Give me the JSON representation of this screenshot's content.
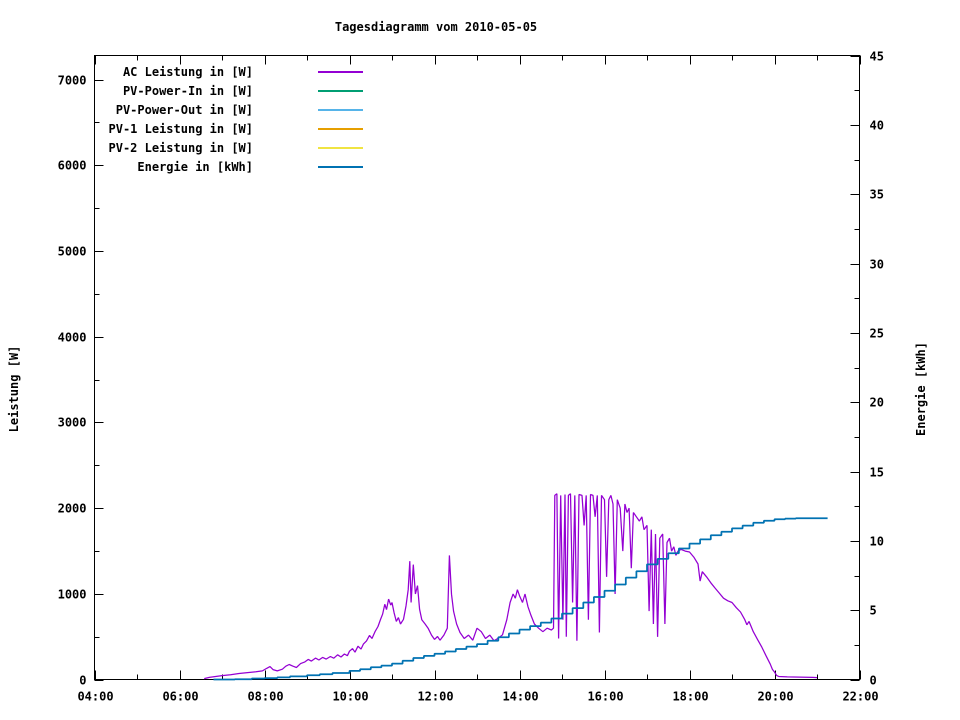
{
  "title": "Tagesdiagramm vom 2010-05-05",
  "axes": {
    "left_label": "Leistung [W]",
    "right_label": "Energie [kWh]"
  },
  "legend": {
    "items": [
      {
        "label": "AC Leistung in [W]",
        "color": "#9400D3"
      },
      {
        "label": "PV-Power-In in [W]",
        "color": "#009E73"
      },
      {
        "label": "PV-Power-Out in [W]",
        "color": "#56B4E9"
      },
      {
        "label": "PV-1 Leistung in [W]",
        "color": "#E69F00"
      },
      {
        "label": "PV-2 Leistung in [W]",
        "color": "#F0E442"
      },
      {
        "label": "Energie in [kWh]",
        "color": "#0072B2"
      }
    ]
  },
  "chart_data": {
    "type": "line",
    "title": "Tagesdiagramm vom 2010-05-05",
    "xlabel": "",
    "ylabel_left": "Leistung [W]",
    "ylabel_right": "Energie [kWh]",
    "grid": false,
    "legend_position": "top-left-inside",
    "x_range": [
      4,
      22
    ],
    "y1_range": [
      0,
      7280
    ],
    "y2_range": [
      0,
      45
    ],
    "x_ticks_major": [
      4,
      6,
      8,
      10,
      12,
      14,
      16,
      18,
      20,
      22
    ],
    "x_tick_labels": [
      "04:00",
      "06:00",
      "08:00",
      "10:00",
      "12:00",
      "14:00",
      "16:00",
      "18:00",
      "20:00",
      "22:00"
    ],
    "x_ticks_minor": [
      5,
      7,
      9,
      11,
      13,
      15,
      17,
      19,
      21
    ],
    "y1_ticks_major": [
      0,
      1000,
      2000,
      3000,
      4000,
      5000,
      6000,
      7000
    ],
    "y1_tick_labels": [
      "0",
      "1000",
      "2000",
      "3000",
      "4000",
      "5000",
      "6000",
      "7000"
    ],
    "y1_ticks_minor": [
      500,
      1500,
      2500,
      3500,
      4500,
      5500,
      6500
    ],
    "y2_ticks_major": [
      0,
      5,
      10,
      15,
      20,
      25,
      30,
      35,
      40,
      45
    ],
    "y2_tick_labels": [
      "0",
      "5",
      "10",
      "15",
      "20",
      "25",
      "30",
      "35",
      "40",
      "45"
    ],
    "y2_ticks_minor": [
      2.5,
      7.5,
      12.5,
      17.5,
      22.5,
      27.5,
      32.5,
      37.5,
      42.5
    ],
    "series": [
      {
        "name": "AC Leistung in [W]",
        "color": "#9400D3",
        "axis": "y1",
        "style": "line",
        "width": 1.25,
        "x": [
          6.58,
          6.7,
          6.85,
          7.0,
          7.2,
          7.4,
          7.6,
          7.8,
          7.95,
          8.05,
          8.13,
          8.2,
          8.3,
          8.42,
          8.5,
          8.58,
          8.67,
          8.75,
          8.85,
          8.95,
          9.03,
          9.1,
          9.2,
          9.28,
          9.37,
          9.45,
          9.55,
          9.63,
          9.72,
          9.8,
          9.88,
          9.95,
          10.0,
          10.07,
          10.13,
          10.2,
          10.27,
          10.33,
          10.4,
          10.47,
          10.53,
          10.6,
          10.67,
          10.73,
          10.78,
          10.83,
          10.87,
          10.92,
          10.97,
          11.0,
          11.05,
          11.1,
          11.15,
          11.2,
          11.27,
          11.33,
          11.38,
          11.42,
          11.45,
          11.5,
          11.55,
          11.6,
          11.65,
          11.7,
          11.78,
          11.85,
          11.93,
          12.0,
          12.07,
          12.13,
          12.22,
          12.3,
          12.35,
          12.4,
          12.45,
          12.52,
          12.6,
          12.7,
          12.8,
          12.9,
          13.0,
          13.1,
          13.2,
          13.3,
          13.4,
          13.5,
          13.6,
          13.7,
          13.78,
          13.85,
          13.9,
          13.95,
          14.0,
          14.07,
          14.13,
          14.2,
          14.27,
          14.35,
          14.45,
          14.55,
          14.65,
          14.75,
          14.8,
          14.83,
          14.88,
          14.92,
          14.97,
          15.02,
          15.07,
          15.1,
          15.15,
          15.2,
          15.25,
          15.3,
          15.35,
          15.4,
          15.47,
          15.52,
          15.57,
          15.62,
          15.67,
          15.73,
          15.78,
          15.83,
          15.88,
          15.93,
          16.0,
          16.05,
          16.1,
          16.15,
          16.2,
          16.25,
          16.3,
          16.37,
          16.43,
          16.48,
          16.53,
          16.58,
          16.63,
          16.68,
          16.75,
          16.82,
          16.88,
          16.93,
          17.0,
          17.05,
          17.1,
          17.15,
          17.2,
          17.25,
          17.3,
          17.37,
          17.42,
          17.47,
          17.53,
          17.58,
          17.63,
          17.68,
          17.73,
          17.8,
          17.9,
          18.0,
          18.1,
          18.2,
          18.25,
          18.3,
          18.4,
          18.5,
          18.6,
          18.7,
          18.8,
          18.9,
          19.0,
          19.1,
          19.2,
          19.3,
          19.35,
          19.4,
          19.5,
          19.6,
          19.7,
          19.8,
          19.9,
          19.95,
          20.0,
          20.05,
          20.1,
          20.3,
          20.6,
          20.9,
          21.0
        ],
        "y": [
          10,
          25,
          35,
          45,
          55,
          70,
          80,
          90,
          100,
          130,
          150,
          115,
          100,
          120,
          155,
          175,
          155,
          140,
          185,
          205,
          235,
          215,
          250,
          228,
          258,
          238,
          268,
          248,
          288,
          262,
          298,
          278,
          330,
          360,
          318,
          388,
          355,
          415,
          450,
          515,
          478,
          558,
          618,
          700,
          762,
          878,
          815,
          938,
          868,
          898,
          778,
          678,
          722,
          648,
          702,
          858,
          1048,
          1380,
          898,
          1340,
          998,
          1095,
          818,
          698,
          648,
          598,
          518,
          468,
          502,
          458,
          518,
          598,
          1448,
          995,
          795,
          648,
          548,
          478,
          518,
          458,
          598,
          558,
          478,
          518,
          452,
          482,
          522,
          698,
          898,
          998,
          948,
          1048,
          978,
          898,
          998,
          848,
          748,
          648,
          598,
          558,
          598,
          578,
          598,
          2148,
          2168,
          478,
          2148,
          698,
          2158,
          498,
          2148,
          2168,
          898,
          2148,
          452,
          2158,
          2148,
          1798,
          2148,
          698,
          2158,
          2148,
          1898,
          2148,
          548,
          2148,
          2098,
          1198,
          2098,
          2148,
          2048,
          998,
          2098,
          1998,
          1498,
          2048,
          1948,
          1998,
          1298,
          1948,
          1898,
          1848,
          1898,
          1748,
          1798,
          798,
          1748,
          648,
          1698,
          498,
          1648,
          1698,
          648,
          1598,
          1648,
          1498,
          1548,
          1448,
          1498,
          1518,
          1498,
          1488,
          1428,
          1348,
          1148,
          1258,
          1198,
          1128,
          1068,
          1008,
          948,
          918,
          898,
          838,
          788,
          698,
          638,
          678,
          558,
          468,
          378,
          278,
          178,
          118,
          88,
          48,
          35,
          30,
          28,
          25,
          22
        ]
      },
      {
        "name": "PV-Power-In in [W]",
        "color": "#009E73",
        "axis": "y1",
        "style": "line",
        "x": [],
        "y": []
      },
      {
        "name": "PV-Power-Out in [W]",
        "color": "#56B4E9",
        "axis": "y1",
        "style": "line",
        "x": [],
        "y": []
      },
      {
        "name": "PV-1 Leistung in [W]",
        "color": "#E69F00",
        "axis": "y1",
        "style": "line",
        "x": [],
        "y": []
      },
      {
        "name": "PV-2 Leistung in [W]",
        "color": "#F0E442",
        "axis": "y1",
        "style": "line",
        "x": [],
        "y": []
      },
      {
        "name": "Energie in [kWh]",
        "color": "#0072B2",
        "axis": "y2",
        "style": "steps",
        "width": 1.75,
        "x": [
          6.8,
          7.3,
          7.7,
          8.0,
          8.3,
          8.6,
          9.0,
          9.3,
          9.6,
          10.0,
          10.25,
          10.5,
          10.75,
          11.0,
          11.25,
          11.5,
          11.75,
          12.0,
          12.25,
          12.5,
          12.75,
          13.0,
          13.25,
          13.5,
          13.75,
          14.0,
          14.25,
          14.5,
          14.75,
          15.0,
          15.25,
          15.5,
          15.75,
          16.0,
          16.25,
          16.5,
          16.75,
          17.0,
          17.25,
          17.5,
          17.75,
          18.0,
          18.25,
          18.5,
          18.75,
          19.0,
          19.25,
          19.5,
          19.75,
          20.0,
          20.25,
          20.5,
          20.75,
          21.0,
          21.25
        ],
        "y": [
          0,
          0.02,
          0.07,
          0.1,
          0.15,
          0.22,
          0.3,
          0.38,
          0.47,
          0.62,
          0.74,
          0.88,
          1.0,
          1.15,
          1.35,
          1.55,
          1.7,
          1.85,
          2.02,
          2.2,
          2.37,
          2.55,
          2.8,
          3.05,
          3.32,
          3.6,
          3.85,
          4.1,
          4.4,
          4.75,
          5.15,
          5.55,
          5.95,
          6.4,
          6.85,
          7.35,
          7.8,
          8.3,
          8.7,
          9.1,
          9.45,
          9.8,
          10.1,
          10.4,
          10.65,
          10.9,
          11.1,
          11.3,
          11.45,
          11.55,
          11.6,
          11.63,
          11.63,
          11.63,
          11.63
        ]
      }
    ]
  },
  "colors": {
    "background": "#ffffff",
    "axis": "#000000",
    "text": "#000000"
  }
}
